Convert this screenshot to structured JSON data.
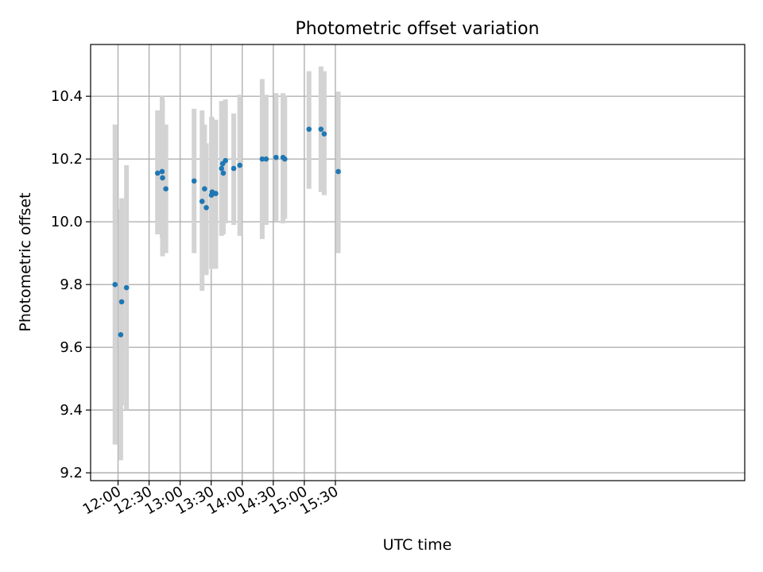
{
  "chart_data": {
    "type": "scatter",
    "title": "Photometric offset variation",
    "xlabel": "UTC time",
    "ylabel": "Photometric offset",
    "xlim_minutes": [
      693.5,
      1325.5
    ],
    "ylim": [
      9.175,
      10.565
    ],
    "grid": true,
    "x_ticks": [
      {
        "value": 720,
        "label": "12:00"
      },
      {
        "value": 750,
        "label": "12:30"
      },
      {
        "value": 780,
        "label": "13:00"
      },
      {
        "value": 810,
        "label": "13:30"
      },
      {
        "value": 840,
        "label": "14:00"
      },
      {
        "value": 870,
        "label": "14:30"
      },
      {
        "value": 900,
        "label": "15:00"
      },
      {
        "value": 930,
        "label": "15:30"
      }
    ],
    "y_ticks": [
      {
        "value": 9.2,
        "label": "9.2"
      },
      {
        "value": 9.4,
        "label": "9.4"
      },
      {
        "value": 9.6,
        "label": "9.6"
      },
      {
        "value": 9.8,
        "label": "9.8"
      },
      {
        "value": 10.0,
        "label": "10.0"
      },
      {
        "value": 10.2,
        "label": "10.2"
      },
      {
        "value": 10.4,
        "label": "10.4"
      }
    ],
    "series": [
      {
        "name": "offset",
        "marker_color": "#1f77b4",
        "errorbar_color": "#d3d3d3",
        "x_minutes": [
          717.1,
          722.6,
          723.5,
          728.2,
          758.2,
          762.6,
          763.0,
          766.2,
          793.5,
          801.2,
          803.6,
          805.3,
          810.3,
          811.0,
          814.4,
          820.0,
          821.1,
          821.7,
          823.8,
          831.8,
          837.6,
          859.3,
          863.1,
          872.7,
          879.4,
          881.1,
          904.5,
          916.1,
          919.2,
          932.8
        ],
        "values": [
          9.8,
          9.64,
          9.745,
          9.79,
          10.155,
          10.16,
          10.14,
          10.105,
          10.13,
          10.065,
          10.105,
          10.045,
          10.085,
          10.095,
          10.09,
          10.17,
          10.185,
          10.155,
          10.195,
          10.17,
          10.18,
          10.2,
          10.2,
          10.205,
          10.205,
          10.2,
          10.295,
          10.295,
          10.28,
          10.16
        ],
        "lower": [
          9.29,
          9.24,
          9.415,
          9.4,
          9.96,
          9.95,
          9.89,
          9.9,
          9.9,
          9.78,
          9.9,
          9.83,
          9.85,
          9.86,
          9.85,
          9.955,
          9.96,
          9.96,
          9.995,
          9.99,
          9.955,
          9.945,
          9.99,
          10.0,
          9.995,
          10.01,
          10.105,
          10.095,
          10.085,
          9.9
        ],
        "upper": [
          10.31,
          10.04,
          10.075,
          10.18,
          10.355,
          10.4,
          10.39,
          10.31,
          10.36,
          10.355,
          10.31,
          10.25,
          10.335,
          10.33,
          10.325,
          10.385,
          10.36,
          10.355,
          10.39,
          10.345,
          10.405,
          10.455,
          10.405,
          10.41,
          10.41,
          10.4,
          10.48,
          10.495,
          10.48,
          10.415
        ]
      }
    ]
  }
}
